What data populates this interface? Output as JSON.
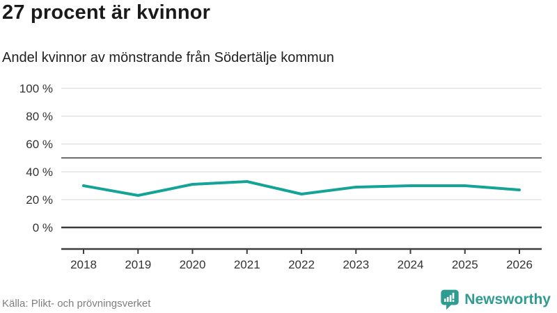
{
  "header": {
    "title": "27 procent är kvinnor",
    "subtitle": "Andel kvinnor av mönstrande från Södertälje kommun"
  },
  "footer": {
    "source": "Källa: Plikt- och prövningsverket",
    "logo_text": "Newsworthy"
  },
  "colors": {
    "line": "#14a397",
    "logo": "#2f9c92",
    "grid_light": "#e3e3e3",
    "grid_reference": "#6b6b6b",
    "axis_dark": "#3c3c3c"
  },
  "chart_data": {
    "type": "line",
    "categories": [
      "2018",
      "2019",
      "2020",
      "2021",
      "2022",
      "2023",
      "2024",
      "2025",
      "2026"
    ],
    "series": [
      {
        "name": "Andel kvinnor",
        "values": [
          30,
          23,
          31,
          33,
          24,
          29,
          30,
          30,
          27
        ]
      }
    ],
    "title": "27 procent är kvinnor",
    "subtitle": "Andel kvinnor av mönstrande från Södertälje kommun",
    "xlabel": "",
    "ylabel": "",
    "ylim": [
      0,
      100
    ],
    "yticks": [
      0,
      20,
      40,
      60,
      80,
      100
    ],
    "ytick_suffix": " %",
    "reference_line": 50,
    "grid": true,
    "legend": false
  }
}
